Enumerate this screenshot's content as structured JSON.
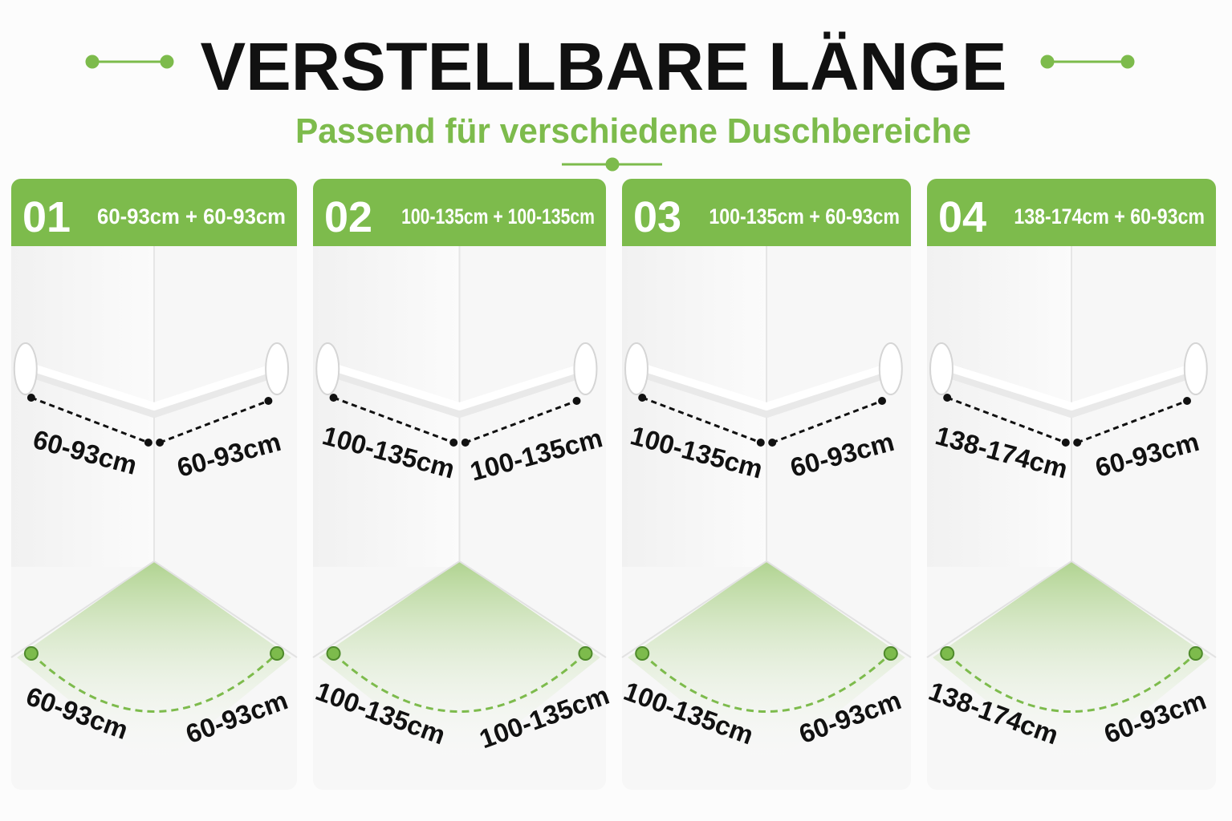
{
  "header": {
    "title": "VERSTELLBARE LÄNGE",
    "subtitle": "Passend für verschiedene Duschbereiche"
  },
  "panels": [
    {
      "number": "01",
      "range": "60-93cm + 60-93cm",
      "rod_left": "60-93cm",
      "rod_right": "60-93cm",
      "floor_left": "60-93cm",
      "floor_right": "60-93cm"
    },
    {
      "number": "02",
      "range": "100-135cm + 100-135cm",
      "rod_left": "100-135cm",
      "rod_right": "100-135cm",
      "floor_left": "100-135cm",
      "floor_right": "100-135cm"
    },
    {
      "number": "03",
      "range": "100-135cm + 60-93cm",
      "rod_left": "100-135cm",
      "rod_right": "60-93cm",
      "floor_left": "100-135cm",
      "floor_right": "60-93cm"
    },
    {
      "number": "04",
      "range": "138-174cm + 60-93cm",
      "rod_left": "138-174cm",
      "rod_right": "60-93cm",
      "floor_left": "138-174cm",
      "floor_right": "60-93cm"
    }
  ]
}
